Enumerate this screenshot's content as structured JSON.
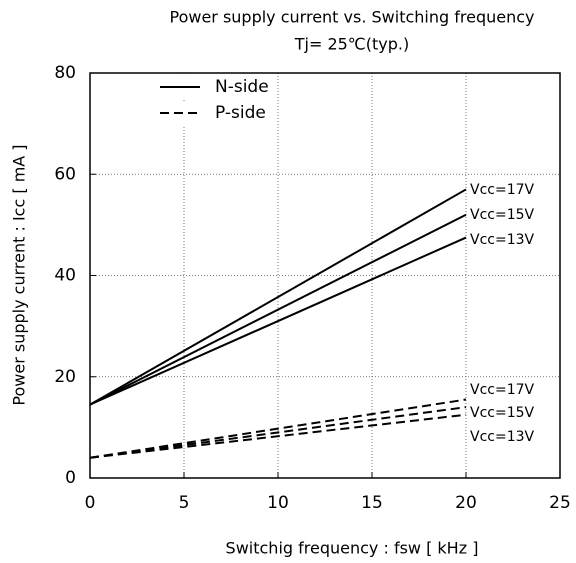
{
  "chart_data": {
    "type": "line",
    "title": "Power supply current vs. Switching frequency",
    "subtitle": "Tj= 25℃(typ.)",
    "x_label": "Switchig frequency : fsw [ kHz ]",
    "y_label": "Power supply current : Icc [ mA ]",
    "x": [
      0,
      20
    ],
    "legend": [
      {
        "label": "N-side",
        "dash": "solid"
      },
      {
        "label": "P-side",
        "dash": "dashed"
      }
    ],
    "series": [
      {
        "name": "Vcc=17V",
        "color": "#000000",
        "dash": "solid",
        "values": [
          14.5,
          57
        ]
      },
      {
        "name": "Vcc=15V",
        "color": "#000000",
        "dash": "solid",
        "values": [
          14.5,
          52
        ]
      },
      {
        "name": "Vcc=13V",
        "color": "#000000",
        "dash": "solid",
        "values": [
          14.5,
          47.5
        ]
      },
      {
        "name": "Vcc=17V",
        "color": "#000000",
        "dash": "dashed",
        "values": [
          4,
          15.5
        ]
      },
      {
        "name": "Vcc=15V",
        "color": "#000000",
        "dash": "dashed",
        "values": [
          4,
          14
        ]
      },
      {
        "name": "Vcc=13V",
        "color": "#000000",
        "dash": "dashed",
        "values": [
          4,
          12.5
        ]
      }
    ],
    "xlim": [
      0,
      25
    ],
    "xticks": [
      0,
      5,
      10,
      15,
      20,
      25
    ],
    "ylim": [
      0,
      80
    ],
    "yticks": [
      0,
      20,
      40,
      60,
      80
    ],
    "grid": true
  }
}
